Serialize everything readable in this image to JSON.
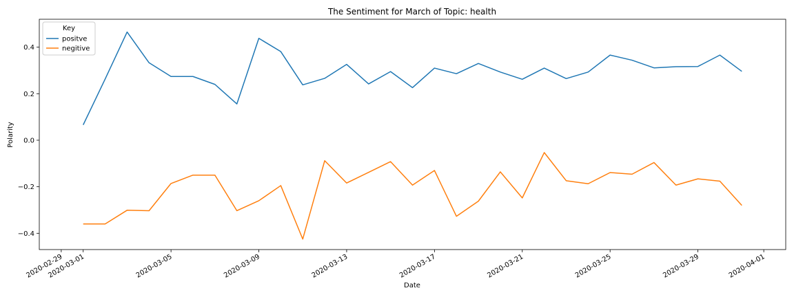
{
  "chart_data": {
    "type": "line",
    "title": "The Sentiment for March of Topic: health",
    "xlabel": "Date",
    "ylabel": "Polarity",
    "xlim": [
      "2020-02-28",
      "2020-04-02"
    ],
    "ylim": [
      -0.47,
      0.52
    ],
    "x_ticks": [
      "2020-02-29",
      "2020-03-01",
      "2020-03-05",
      "2020-03-09",
      "2020-03-13",
      "2020-03-17",
      "2020-03-21",
      "2020-03-25",
      "2020-03-29",
      "2020-04-01"
    ],
    "y_ticks": [
      -0.4,
      -0.2,
      0.0,
      0.2,
      0.4
    ],
    "y_tick_labels": [
      "−0.4",
      "−0.2",
      "0.0",
      "0.2",
      "0.4"
    ],
    "grid": false,
    "legend": {
      "title": "Key",
      "placement": "top-left"
    },
    "x": [
      "2020-03-01",
      "2020-03-02",
      "2020-03-03",
      "2020-03-04",
      "2020-03-05",
      "2020-03-06",
      "2020-03-07",
      "2020-03-08",
      "2020-03-09",
      "2020-03-10",
      "2020-03-11",
      "2020-03-12",
      "2020-03-13",
      "2020-03-14",
      "2020-03-15",
      "2020-03-16",
      "2020-03-17",
      "2020-03-18",
      "2020-03-19",
      "2020-03-20",
      "2020-03-21",
      "2020-03-22",
      "2020-03-23",
      "2020-03-24",
      "2020-03-25",
      "2020-03-26",
      "2020-03-27",
      "2020-03-28",
      "2020-03-29",
      "2020-03-30",
      "2020-03-31"
    ],
    "series": [
      {
        "name": "positve",
        "color": "#1f77b4",
        "values": [
          0.066,
          0.263,
          0.465,
          0.333,
          0.274,
          0.274,
          0.24,
          0.156,
          0.438,
          0.381,
          0.238,
          0.266,
          0.326,
          0.242,
          0.295,
          0.226,
          0.31,
          0.286,
          0.33,
          0.293,
          0.262,
          0.31,
          0.265,
          0.293,
          0.366,
          0.344,
          0.311,
          0.316,
          0.317,
          0.366,
          0.296
        ]
      },
      {
        "name": "negitive",
        "color": "#ff7f0e",
        "values": [
          -0.36,
          -0.36,
          -0.301,
          -0.303,
          -0.186,
          -0.15,
          -0.15,
          -0.303,
          -0.26,
          -0.195,
          -0.425,
          -0.088,
          -0.184,
          -0.138,
          -0.092,
          -0.193,
          -0.13,
          -0.327,
          -0.262,
          -0.136,
          -0.248,
          -0.053,
          -0.174,
          -0.187,
          -0.139,
          -0.146,
          -0.096,
          -0.193,
          -0.166,
          -0.176,
          -0.28
        ]
      }
    ]
  }
}
